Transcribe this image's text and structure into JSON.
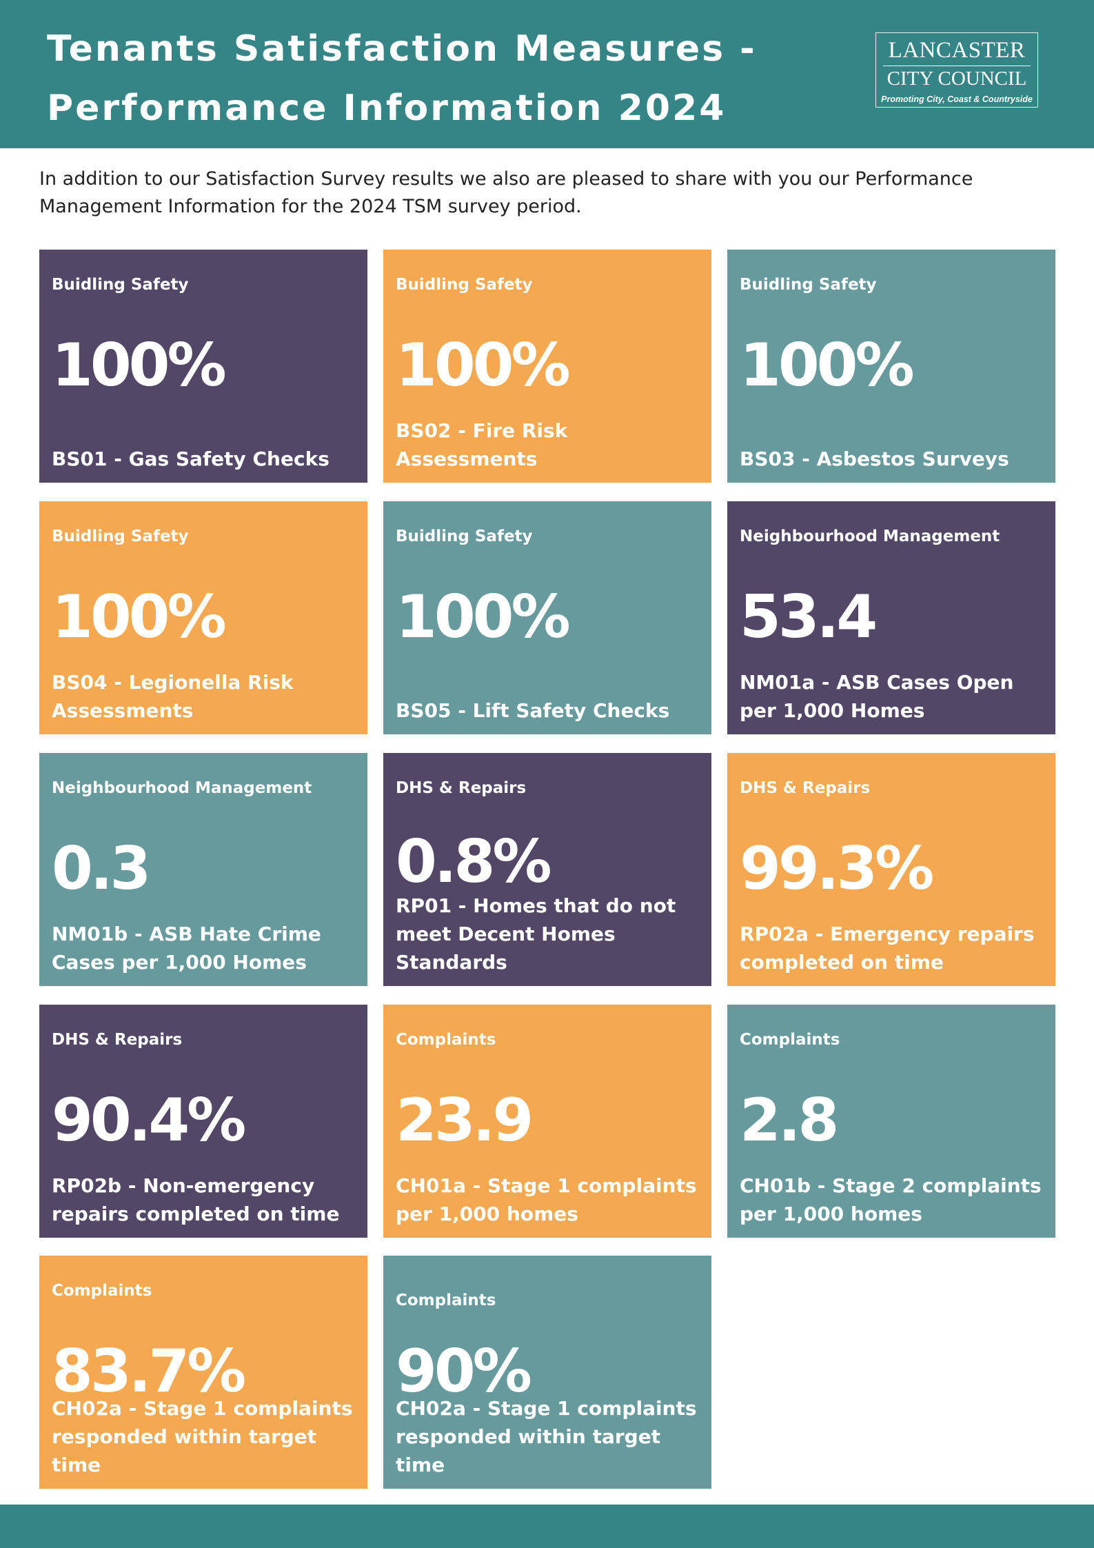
{
  "header": {
    "title_line1": "Tenants Satisfaction Measures -",
    "title_line2": "Performance Information 2024",
    "logo": {
      "line1": "LANCASTER",
      "line2": "CITY COUNCIL",
      "tagline": "Promoting City, Coast & Countryside"
    }
  },
  "intro": "In addition to our Satisfaction Survey results we also are pleased to share with you our Performance Management Information for the 2024 TSM survey period.",
  "colors": {
    "header_teal": "#358587",
    "purple": "#524766",
    "orange": "#f5a84f",
    "teal": "#669a9c"
  },
  "cards": [
    {
      "category": "Buidling Safety",
      "value": "100%",
      "label": "BS01 - Gas Safety Checks",
      "color": "purple"
    },
    {
      "category": "Buidling Safety",
      "value": "100%",
      "label": "BS02 - Fire Risk Assessments",
      "color": "orange"
    },
    {
      "category": "Buidling Safety",
      "value": "100%",
      "label": "BS03 - Asbestos Surveys",
      "color": "teal"
    },
    {
      "category": "Buidling Safety",
      "value": "100%",
      "label": "BS04 - Legionella Risk Assessments",
      "color": "orange"
    },
    {
      "category": "Buidling Safety",
      "value": "100%",
      "label": "BS05 - Lift Safety Checks",
      "color": "teal"
    },
    {
      "category": "Neighbourhood Management",
      "value": "53.4",
      "label": "NM01a - ASB Cases Open per 1,000 Homes",
      "color": "purple"
    },
    {
      "category": "Neighbourhood Management",
      "value": "0.3",
      "label": "NM01b - ASB Hate Crime Cases per 1,000 Homes",
      "color": "teal"
    },
    {
      "category": "DHS & Repairs",
      "value": "0.8%",
      "label": "RP01 - Homes that do not meet Decent Homes Standards",
      "color": "purple"
    },
    {
      "category": "DHS & Repairs",
      "value": "99.3%",
      "label": "RP02a - Emergency repairs completed on time",
      "color": "orange"
    },
    {
      "category": "DHS & Repairs",
      "value": "90.4%",
      "label": "RP02b - Non-emergency repairs completed on time",
      "color": "purple"
    },
    {
      "category": "Complaints",
      "value": "23.9",
      "label": "CH01a - Stage 1 complaints per 1,000 homes",
      "color": "orange"
    },
    {
      "category": "Complaints",
      "value": "2.8",
      "label": "CH01b - Stage 2 complaints per 1,000 homes",
      "color": "teal"
    },
    {
      "category": "Complaints",
      "value": "83.7%",
      "label": "CH02a - Stage 1 complaints responded within target time",
      "color": "orange"
    },
    {
      "category": "Complaints",
      "value": "90%",
      "label": "CH02a - Stage 1 complaints responded within target time",
      "color": "teal"
    }
  ]
}
